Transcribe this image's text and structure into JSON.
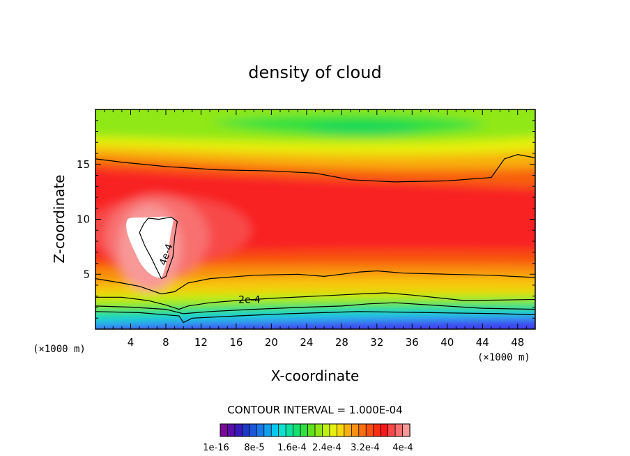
{
  "chart_data": {
    "type": "heatmap",
    "title": "density of cloud",
    "xlabel": "X-coordinate",
    "ylabel": "Z-coordinate",
    "x_unit": "(×1000 m)",
    "y_unit": "(×1000 m)",
    "xlim": [
      0,
      50
    ],
    "ylim": [
      0,
      20
    ],
    "x_ticks": [
      4,
      8,
      12,
      16,
      20,
      24,
      28,
      32,
      36,
      40,
      44,
      48
    ],
    "y_ticks": [
      5,
      10,
      15
    ],
    "contour_interval": "CONTOUR INTERVAL = 1.000E-04",
    "colorbar_labels": [
      "1e-16",
      "8e-5",
      "1.6e-4",
      "2.4e-4",
      "3.2e-4",
      "4e-4"
    ],
    "colorbar_colors": [
      "#7a0a9a",
      "#5a0fa8",
      "#3a1ab8",
      "#2238c8",
      "#1a58d8",
      "#1878e8",
      "#10a0f0",
      "#08c8f0",
      "#10e0d0",
      "#10e0a0",
      "#18e070",
      "#30e040",
      "#60e020",
      "#90e818",
      "#c0f010",
      "#e8f010",
      "#f8d810",
      "#f8b010",
      "#f89010",
      "#f87010",
      "#f85010",
      "#f83010",
      "#f81818",
      "#f84848",
      "#f87070",
      "#f89898"
    ],
    "contour_labels": [
      {
        "text": "4e-4",
        "x": 8,
        "z": 6.8,
        "angle": -70
      },
      {
        "text": "2e-4",
        "x": 17.5,
        "z": 2.7,
        "angle": 0
      }
    ],
    "contours": [
      {
        "level": "4e-4",
        "points": [
          [
            5.5,
            9.6
          ],
          [
            5.0,
            8.8
          ],
          [
            5.6,
            7.6
          ],
          [
            6.4,
            6.4
          ],
          [
            7.0,
            5.4
          ],
          [
            7.5,
            4.6
          ],
          [
            8.0,
            4.8
          ],
          [
            8.8,
            6.6
          ],
          [
            9.0,
            8.4
          ],
          [
            9.3,
            9.8
          ],
          [
            8.6,
            10.2
          ],
          [
            7.2,
            10.0
          ],
          [
            6.0,
            10.1
          ],
          [
            5.5,
            9.6
          ]
        ],
        "closed": true
      },
      {
        "level": "3e-4",
        "points": [
          [
            0,
            15.5
          ],
          [
            3,
            15.2
          ],
          [
            8,
            14.8
          ],
          [
            14,
            14.5
          ],
          [
            20,
            14.4
          ],
          [
            25,
            14.2
          ],
          [
            29,
            13.6
          ],
          [
            34,
            13.4
          ],
          [
            40,
            13.5
          ],
          [
            45,
            13.8
          ],
          [
            46.5,
            15.5
          ],
          [
            48,
            15.9
          ],
          [
            50,
            15.6
          ]
        ],
        "closed": false
      },
      {
        "level": "3e-4",
        "points": [
          [
            0,
            4.6
          ],
          [
            3,
            4.2
          ],
          [
            5,
            3.9
          ],
          [
            7.5,
            3.2
          ],
          [
            9.0,
            3.4
          ],
          [
            10.5,
            4.2
          ],
          [
            13,
            4.6
          ],
          [
            18,
            4.9
          ],
          [
            23,
            5.0
          ],
          [
            26,
            4.8
          ],
          [
            30,
            5.2
          ],
          [
            32,
            5.3
          ],
          [
            35,
            5.1
          ],
          [
            40,
            5.0
          ],
          [
            45,
            4.9
          ],
          [
            50,
            4.7
          ]
        ],
        "closed": false
      },
      {
        "level": "2e-4",
        "points": [
          [
            0,
            2.9
          ],
          [
            3,
            2.9
          ],
          [
            6,
            2.6
          ],
          [
            8,
            2.2
          ],
          [
            9.5,
            1.8
          ],
          [
            10.5,
            2.1
          ],
          [
            13,
            2.4
          ],
          [
            16,
            2.6
          ],
          [
            20,
            2.8
          ],
          [
            25,
            3.0
          ],
          [
            30,
            3.2
          ],
          [
            33,
            3.3
          ],
          [
            36,
            3.1
          ],
          [
            42,
            2.6
          ],
          [
            50,
            2.7
          ]
        ],
        "closed": false
      },
      {
        "level": "1e-4",
        "points": [
          [
            0,
            2.1
          ],
          [
            4,
            2.0
          ],
          [
            8,
            1.8
          ],
          [
            10,
            1.4
          ],
          [
            13,
            1.6
          ],
          [
            18,
            1.8
          ],
          [
            24,
            2.0
          ],
          [
            28,
            2.1
          ],
          [
            31,
            2.3
          ],
          [
            34,
            2.4
          ],
          [
            38,
            2.2
          ],
          [
            44,
            1.9
          ],
          [
            50,
            1.8
          ]
        ],
        "closed": false
      },
      {
        "level": "1e-16",
        "points": [
          [
            0,
            1.6
          ],
          [
            5,
            1.5
          ],
          [
            9.5,
            1.2
          ],
          [
            10,
            0.6
          ],
          [
            11,
            1.0
          ],
          [
            16,
            1.2
          ],
          [
            22,
            1.4
          ],
          [
            30,
            1.6
          ],
          [
            38,
            1.5
          ],
          [
            46,
            1.4
          ],
          [
            50,
            1.3
          ]
        ],
        "closed": false
      }
    ]
  }
}
